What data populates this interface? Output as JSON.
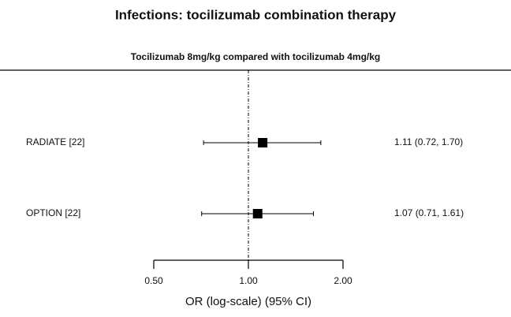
{
  "chart_data": {
    "type": "forest",
    "title": "Infections: tocilizumab combination therapy",
    "subtitle": "Tocilizumab 8mg/kg compared with tocilizumab 4mg/kg",
    "categories": [
      "RADIATE [22]",
      "OPTION [22]"
    ],
    "values": [
      1.11,
      1.07
    ],
    "lower": [
      0.72,
      0.71
    ],
    "upper": [
      1.7,
      1.61
    ],
    "value_labels": [
      "1.11 (0.72, 1.70)",
      "1.07 (0.71, 1.61)"
    ],
    "xlabel": "OR (log-scale) (95% CI)",
    "xscale": "log",
    "xlim": [
      0.5,
      2.0
    ],
    "xticks": [
      {
        "value": 0.5,
        "label": "0.50"
      },
      {
        "value": 1,
        "label": "1.00"
      },
      {
        "value": 2,
        "label": "2.00"
      }
    ],
    "reference": 1,
    "color": "#000000"
  }
}
